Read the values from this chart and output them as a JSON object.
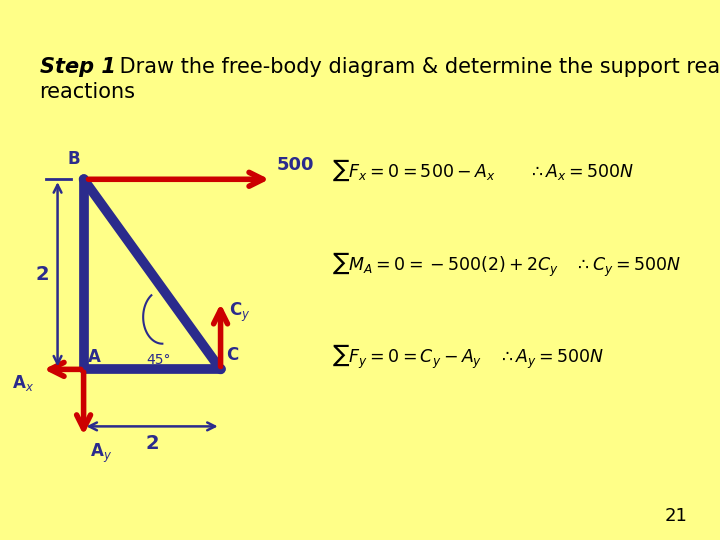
{
  "bg_color": "#FFFF88",
  "title_bold": "Step 1",
  "title_rest": ": Draw the free-body diagram & determine the support reactions",
  "title_line2": "reactions",
  "page_number": "21",
  "box_bg": "white",
  "truss_color": "#2B2B8C",
  "arrow_color": "#CC0000",
  "dim_color": "#2B2B8C",
  "equation_box_bg": "white",
  "label_A": "A",
  "label_B": "B",
  "label_C": "C",
  "label_Ax": "A$_x$",
  "label_Ay": "A$_y$",
  "label_Cy": "C$_y$",
  "label_500": "500",
  "label_2_vert": "2",
  "label_2_horiz": "2",
  "label_45": "45°",
  "font_size_eq": 13,
  "font_size_label": 12
}
